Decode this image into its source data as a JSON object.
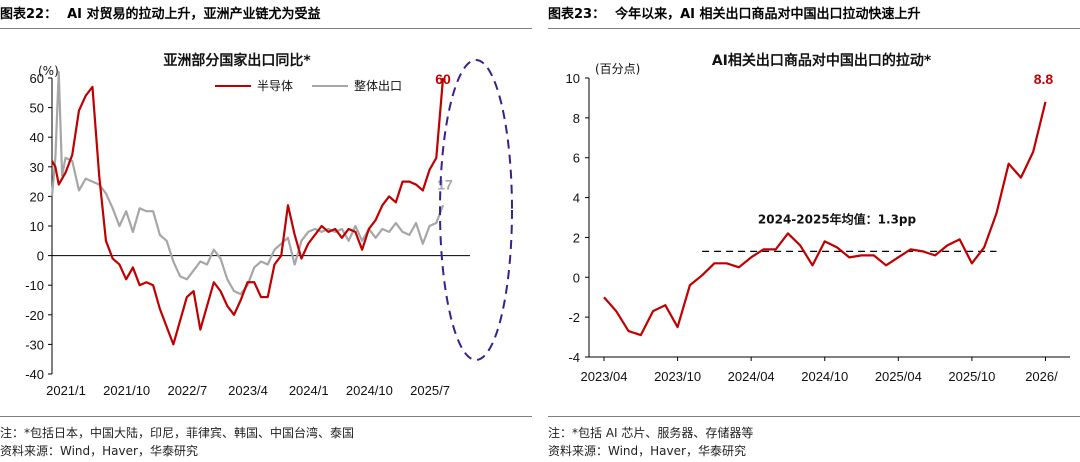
{
  "left_panel": {
    "title_prefix": "图表22：",
    "title_text": "AI 对贸易的拉动上升，亚洲产业链尤为受益",
    "note": "注：*包括日本，中国大陆，印尼，菲律宾、韩国、中国台湾、泰国",
    "source": "资料来源：Wind，Haver，华泰研究"
  },
  "right_panel": {
    "title_prefix": "图表23：",
    "title_text": "今年以来，AI 相关出口商品对中国出口拉动快速上升",
    "note": "注：*包括 AI 芯片、服务器、存储器等",
    "source": "资料来源：Wind，Haver，华泰研究"
  },
  "colors": {
    "red": "#c00000",
    "gray": "#a6a6a6",
    "purple": "#3b1f8f",
    "axis": "#000000"
  },
  "chart_data": [
    {
      "type": "line",
      "title": "亚洲部分国家出口同比*",
      "unit_label": "(%)",
      "ylim": [
        -40,
        60
      ],
      "yticks": [
        -40,
        -30,
        -20,
        -10,
        0,
        10,
        20,
        30,
        40,
        50,
        60
      ],
      "xticks": [
        "2021/1",
        "2021/10",
        "2022/7",
        "2023/4",
        "2024/1",
        "2024/10",
        "2025/7"
      ],
      "legend_position": "top-right",
      "series": [
        {
          "name": "半导体",
          "color": "#c00000",
          "end_label": "60",
          "points": [
            [
              0,
              32
            ],
            [
              0.5,
              30
            ],
            [
              1,
              24
            ],
            [
              2,
              28
            ],
            [
              3,
              34
            ],
            [
              4,
              49
            ],
            [
              5,
              54
            ],
            [
              6,
              57
            ],
            [
              7,
              27
            ],
            [
              8,
              5
            ],
            [
              9,
              -1
            ],
            [
              10,
              -3
            ],
            [
              11,
              -8
            ],
            [
              12,
              -4
            ],
            [
              13,
              -10
            ],
            [
              14,
              -9
            ],
            [
              15,
              -10
            ],
            [
              16,
              -18
            ],
            [
              17,
              -24
            ],
            [
              18,
              -30
            ],
            [
              19,
              -22
            ],
            [
              20,
              -14
            ],
            [
              21,
              -12
            ],
            [
              22,
              -25
            ],
            [
              23,
              -17
            ],
            [
              24,
              -9
            ],
            [
              25,
              -12
            ],
            [
              26,
              -17
            ],
            [
              27,
              -20
            ],
            [
              28,
              -15
            ],
            [
              29,
              -9
            ],
            [
              30,
              -9
            ],
            [
              31,
              -14
            ],
            [
              32,
              -14
            ],
            [
              33,
              -3
            ],
            [
              34,
              0
            ],
            [
              35,
              17
            ],
            [
              36,
              7
            ],
            [
              37,
              -1
            ],
            [
              38,
              4
            ],
            [
              39,
              7
            ],
            [
              40,
              10
            ],
            [
              41,
              8
            ],
            [
              42,
              9
            ],
            [
              43,
              6
            ],
            [
              44,
              9
            ],
            [
              45,
              8
            ],
            [
              46,
              2
            ],
            [
              47,
              9
            ],
            [
              48,
              12
            ],
            [
              49,
              17
            ],
            [
              50,
              20
            ],
            [
              51,
              18
            ],
            [
              52,
              25
            ],
            [
              53,
              25
            ],
            [
              54,
              24
            ],
            [
              55,
              22
            ],
            [
              56,
              29
            ],
            [
              57,
              33
            ],
            [
              58,
              60
            ]
          ]
        },
        {
          "name": "整体出口",
          "color": "#a6a6a6",
          "end_label": "17",
          "points": [
            [
              0,
              20
            ],
            [
              0.5,
              33
            ],
            [
              1,
              62
            ],
            [
              1.5,
              27
            ],
            [
              2,
              33
            ],
            [
              3,
              32
            ],
            [
              4,
              22
            ],
            [
              5,
              26
            ],
            [
              6,
              25
            ],
            [
              7,
              24
            ],
            [
              8,
              21
            ],
            [
              9,
              16
            ],
            [
              10,
              10
            ],
            [
              11,
              15
            ],
            [
              12,
              8
            ],
            [
              13,
              16
            ],
            [
              14,
              15
            ],
            [
              15,
              15
            ],
            [
              16,
              7
            ],
            [
              17,
              5
            ],
            [
              18,
              -2
            ],
            [
              19,
              -7
            ],
            [
              20,
              -8
            ],
            [
              21,
              -5
            ],
            [
              22,
              -2
            ],
            [
              23,
              -3
            ],
            [
              24,
              2
            ],
            [
              25,
              -1
            ],
            [
              26,
              -8
            ],
            [
              27,
              -12
            ],
            [
              28,
              -13
            ],
            [
              29,
              -10
            ],
            [
              30,
              -4
            ],
            [
              31,
              -2
            ],
            [
              32,
              -3
            ],
            [
              33,
              2
            ],
            [
              34,
              4
            ],
            [
              35,
              6
            ],
            [
              36,
              -3
            ],
            [
              37,
              5
            ],
            [
              38,
              8
            ],
            [
              39,
              9
            ],
            [
              40,
              8
            ],
            [
              41,
              9
            ],
            [
              42,
              8
            ],
            [
              43,
              9
            ],
            [
              44,
              5
            ],
            [
              45,
              10
            ],
            [
              46,
              5
            ],
            [
              47,
              9
            ],
            [
              48,
              6
            ],
            [
              49,
              9
            ],
            [
              50,
              8
            ],
            [
              51,
              11
            ],
            [
              52,
              8
            ],
            [
              53,
              7
            ],
            [
              54,
              11
            ],
            [
              55,
              4
            ],
            [
              56,
              10
            ],
            [
              57,
              11
            ],
            [
              58,
              17
            ]
          ]
        }
      ]
    },
    {
      "type": "line",
      "title": "AI相关出口商品对中国出口的拉动*",
      "unit_label": "(百分点)",
      "ylim": [
        -4,
        10
      ],
      "yticks": [
        -4,
        -2,
        0,
        2,
        4,
        6,
        8,
        10
      ],
      "xticks": [
        "2023/04",
        "2023/10",
        "2024/04",
        "2024/10",
        "2025/04",
        "2025/10",
        "2026/"
      ],
      "annotation": "2024-2025年均值：1.3pp",
      "mean_value": 1.3,
      "series": [
        {
          "name": "AI相关出口商品对中国出口的拉动",
          "color": "#c00000",
          "end_label": "8.8",
          "points": [
            [
              0,
              -1.0
            ],
            [
              1,
              -1.7
            ],
            [
              2,
              -2.7
            ],
            [
              3,
              -2.9
            ],
            [
              4,
              -1.7
            ],
            [
              5,
              -1.4
            ],
            [
              6,
              -2.5
            ],
            [
              7,
              -0.4
            ],
            [
              8,
              0.1
            ],
            [
              9,
              0.7
            ],
            [
              10,
              0.7
            ],
            [
              11,
              0.5
            ],
            [
              12,
              1.0
            ],
            [
              13,
              1.4
            ],
            [
              14,
              1.4
            ],
            [
              15,
              2.2
            ],
            [
              16,
              1.6
            ],
            [
              17,
              0.6
            ],
            [
              18,
              1.8
            ],
            [
              19,
              1.5
            ],
            [
              20,
              1.0
            ],
            [
              21,
              1.1
            ],
            [
              22,
              1.1
            ],
            [
              23,
              0.6
            ],
            [
              24,
              1.0
            ],
            [
              25,
              1.4
            ],
            [
              26,
              1.3
            ],
            [
              27,
              1.1
            ],
            [
              28,
              1.6
            ],
            [
              29,
              1.9
            ],
            [
              30,
              0.7
            ],
            [
              31,
              1.5
            ],
            [
              32,
              3.2
            ],
            [
              33,
              5.7
            ],
            [
              34,
              5.0
            ],
            [
              35,
              6.3
            ],
            [
              36,
              8.8
            ]
          ]
        }
      ]
    }
  ]
}
